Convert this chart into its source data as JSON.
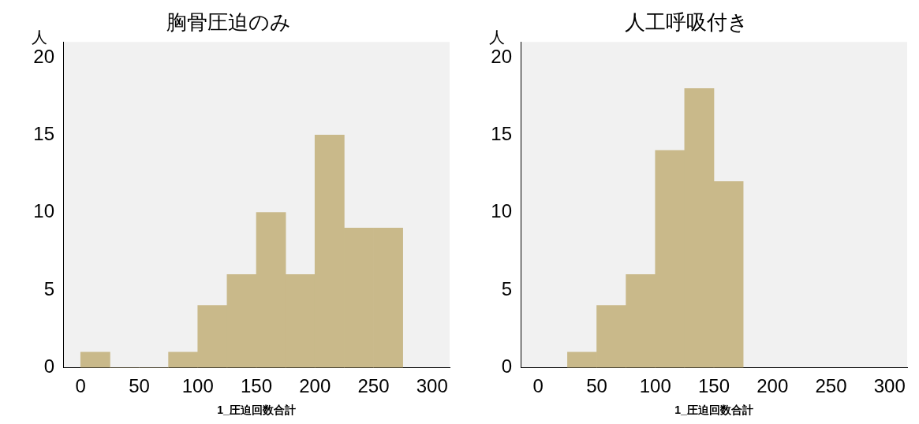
{
  "chart_data": [
    {
      "type": "histogram",
      "title": "胸骨圧迫のみ",
      "xlabel": "1_圧迫回数合計",
      "ylabel": "人",
      "bins": [
        0,
        25,
        50,
        75,
        100,
        125,
        150,
        175,
        200,
        225,
        250,
        275
      ],
      "values": [
        1,
        0,
        0,
        1,
        4,
        6,
        10,
        6,
        15,
        9,
        9
      ],
      "color": "#c9b98a",
      "xlim": [
        -15,
        315
      ],
      "xticks": [
        0,
        50,
        100,
        150,
        200,
        250,
        300
      ],
      "ylim": [
        0,
        21
      ],
      "yticks": [
        0,
        5,
        10,
        15,
        20
      ]
    },
    {
      "type": "histogram",
      "title": "人工呼吸付き",
      "xlabel": "1_圧迫回数合計",
      "ylabel": "人",
      "bins": [
        25,
        50,
        75,
        100,
        125,
        150,
        175
      ],
      "values": [
        1,
        4,
        6,
        14,
        18,
        12
      ],
      "color": "#c9b98a",
      "xlim": [
        -15,
        315
      ],
      "xticks": [
        0,
        50,
        100,
        150,
        200,
        250,
        300
      ],
      "ylim": [
        0,
        21
      ],
      "yticks": [
        0,
        5,
        10,
        15,
        20
      ]
    }
  ]
}
